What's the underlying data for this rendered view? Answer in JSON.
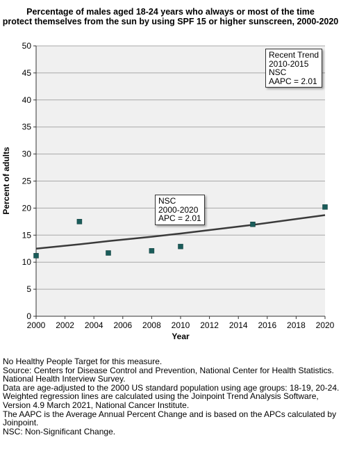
{
  "chart_data": {
    "type": "scatter",
    "title_lines": [
      "Percentage of males aged 18-24 years who always or most of the time",
      "protect themselves from the sun by using SPF 15 or higher sunscreen, 2000-2020"
    ],
    "xlabel": "Year",
    "ylabel": "Percent of adults",
    "xlim": [
      2000,
      2020
    ],
    "ylim": [
      0,
      50
    ],
    "x_ticks": [
      "2000",
      "2002",
      "2004",
      "2006",
      "2008",
      "2010",
      "2012",
      "2014",
      "2016",
      "2018",
      "2020"
    ],
    "y_ticks": [
      "0",
      "5",
      "10",
      "15",
      "20",
      "25",
      "30",
      "35",
      "40",
      "45",
      "50"
    ],
    "grid": "horizontal",
    "points": [
      {
        "x": 2000,
        "y": 11.2
      },
      {
        "x": 2003,
        "y": 17.5
      },
      {
        "x": 2005,
        "y": 11.7
      },
      {
        "x": 2008,
        "y": 12.1
      },
      {
        "x": 2010,
        "y": 12.9
      },
      {
        "x": 2015,
        "y": 17.0
      },
      {
        "x": 2020,
        "y": 20.2
      }
    ],
    "trend_line": [
      {
        "x": 2000,
        "y": 12.5
      },
      {
        "x": 2003,
        "y": 13.3
      },
      {
        "x": 2005,
        "y": 13.9
      },
      {
        "x": 2008,
        "y": 14.7
      },
      {
        "x": 2010,
        "y": 15.3
      },
      {
        "x": 2015,
        "y": 16.9
      },
      {
        "x": 2020,
        "y": 18.7
      }
    ],
    "point_color": "#1a5c5a",
    "line_color": "#3a3a3a",
    "annotations": {
      "recent": [
        "Recent Trend",
        "2010-2015",
        "NSC",
        "AAPC =  2.01"
      ],
      "overall": [
        "NSC",
        "2000-2020",
        "APC =  2.01"
      ]
    }
  },
  "notes": [
    "No Healthy People Target for this measure.",
    "Source: Centers for Disease Control and Prevention, National Center for Health Statistics. National Health Interview Survey.",
    "Data are age-adjusted to the 2000 US standard population using age groups: 18-19, 20-24.",
    "Weighted regression lines are calculated using the Joinpoint Trend Analysis Software, Version 4.9 March 2021, National Cancer Institute.",
    "The AAPC is the Average Annual Percent Change and is based on the APCs calculated by Joinpoint.",
    "NSC: Non-Significant Change."
  ]
}
